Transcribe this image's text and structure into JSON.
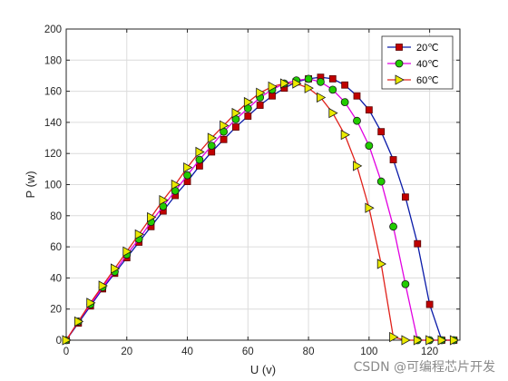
{
  "chart_data": {
    "type": "line",
    "xlabel": "U (v)",
    "ylabel": "P (w)",
    "xlim": [
      0,
      130
    ],
    "ylim": [
      0,
      200
    ],
    "xticks": [
      0,
      20,
      40,
      60,
      80,
      100,
      120
    ],
    "yticks": [
      0,
      20,
      40,
      60,
      80,
      100,
      120,
      140,
      160,
      180,
      200
    ],
    "grid": true,
    "legend_position": "top-right",
    "series": [
      {
        "name": "20℃",
        "color": "#0a1aa8",
        "marker": "square",
        "marker_color": "#c00000",
        "x": [
          0,
          4,
          8,
          12,
          16,
          20,
          24,
          28,
          32,
          36,
          40,
          44,
          48,
          52,
          56,
          60,
          64,
          68,
          72,
          76,
          80,
          84,
          88,
          92,
          96,
          100,
          104,
          108,
          112,
          116,
          120,
          124,
          128
        ],
        "y": [
          0,
          11,
          22,
          33,
          43,
          53,
          63,
          73,
          83,
          93,
          102,
          112,
          121,
          129,
          137,
          144,
          151,
          157,
          162,
          166,
          168,
          169,
          168,
          164,
          157,
          148,
          134,
          116,
          92,
          62,
          23,
          0,
          0
        ]
      },
      {
        "name": "40℃",
        "color": "#e100e1",
        "marker": "circle",
        "marker_color": "#22cc00",
        "x": [
          0,
          4,
          8,
          12,
          16,
          20,
          24,
          28,
          32,
          36,
          40,
          44,
          48,
          52,
          56,
          60,
          64,
          68,
          72,
          76,
          80,
          84,
          88,
          92,
          96,
          100,
          104,
          108,
          112,
          116,
          120,
          124,
          128
        ],
        "y": [
          0,
          12,
          23,
          34,
          44,
          55,
          65,
          76,
          86,
          96,
          106,
          116,
          125,
          134,
          142,
          149,
          156,
          161,
          165,
          167,
          168,
          166,
          161,
          153,
          141,
          125,
          102,
          73,
          36,
          0,
          0,
          0,
          0
        ]
      },
      {
        "name": "60℃",
        "color": "#e0201a",
        "marker": "triangle-right",
        "marker_color": "#eaea00",
        "x": [
          0,
          4,
          8,
          12,
          16,
          20,
          24,
          28,
          32,
          36,
          40,
          44,
          48,
          52,
          56,
          60,
          64,
          68,
          72,
          76,
          80,
          84,
          88,
          92,
          96,
          100,
          104,
          108,
          112,
          116,
          120,
          124,
          128
        ],
        "y": [
          0,
          12,
          24,
          35,
          46,
          57,
          68,
          79,
          90,
          100,
          111,
          121,
          130,
          138,
          146,
          153,
          159,
          163,
          165,
          165,
          162,
          156,
          146,
          132,
          112,
          85,
          49,
          2,
          0,
          0,
          0,
          0,
          0
        ]
      }
    ]
  },
  "watermark": "CSDN @可编程芯片开发"
}
